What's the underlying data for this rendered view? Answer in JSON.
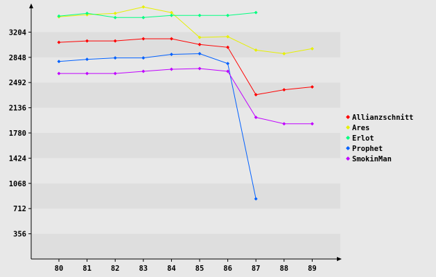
{
  "chart_data": {
    "type": "line",
    "title": "",
    "xlabel": "",
    "ylabel": "",
    "x": [
      "80",
      "81",
      "82",
      "83",
      "84",
      "85",
      "86",
      "87",
      "88",
      "89"
    ],
    "y_ticks": [
      "356",
      "712",
      "1068",
      "1424",
      "1780",
      "2136",
      "2492",
      "2848",
      "3204"
    ],
    "ylim": [
      0,
      3560
    ],
    "grid": "alternating horizontal bands",
    "legend_position": "right",
    "series": [
      {
        "name": "Allianzschnitt",
        "color": "#ff0000",
        "values": [
          3060,
          3080,
          3080,
          3110,
          3110,
          3030,
          2990,
          2320,
          2390,
          2430
        ]
      },
      {
        "name": "Ares",
        "color": "#e6f000",
        "values": [
          3420,
          3450,
          3470,
          3560,
          3480,
          3130,
          3140,
          2950,
          2900,
          2970
        ]
      },
      {
        "name": "Erlot",
        "color": "#00ff80",
        "values": [
          3430,
          3470,
          3410,
          3410,
          3440,
          3440,
          3440,
          3480,
          null,
          null
        ]
      },
      {
        "name": "Prophet",
        "color": "#0060ff",
        "values": [
          2790,
          2820,
          2840,
          2840,
          2890,
          2900,
          2760,
          850,
          null,
          null
        ]
      },
      {
        "name": "SmokinMan",
        "color": "#c000ff",
        "values": [
          2620,
          2620,
          2620,
          2650,
          2680,
          2690,
          2650,
          2000,
          1910,
          1910
        ]
      }
    ]
  }
}
